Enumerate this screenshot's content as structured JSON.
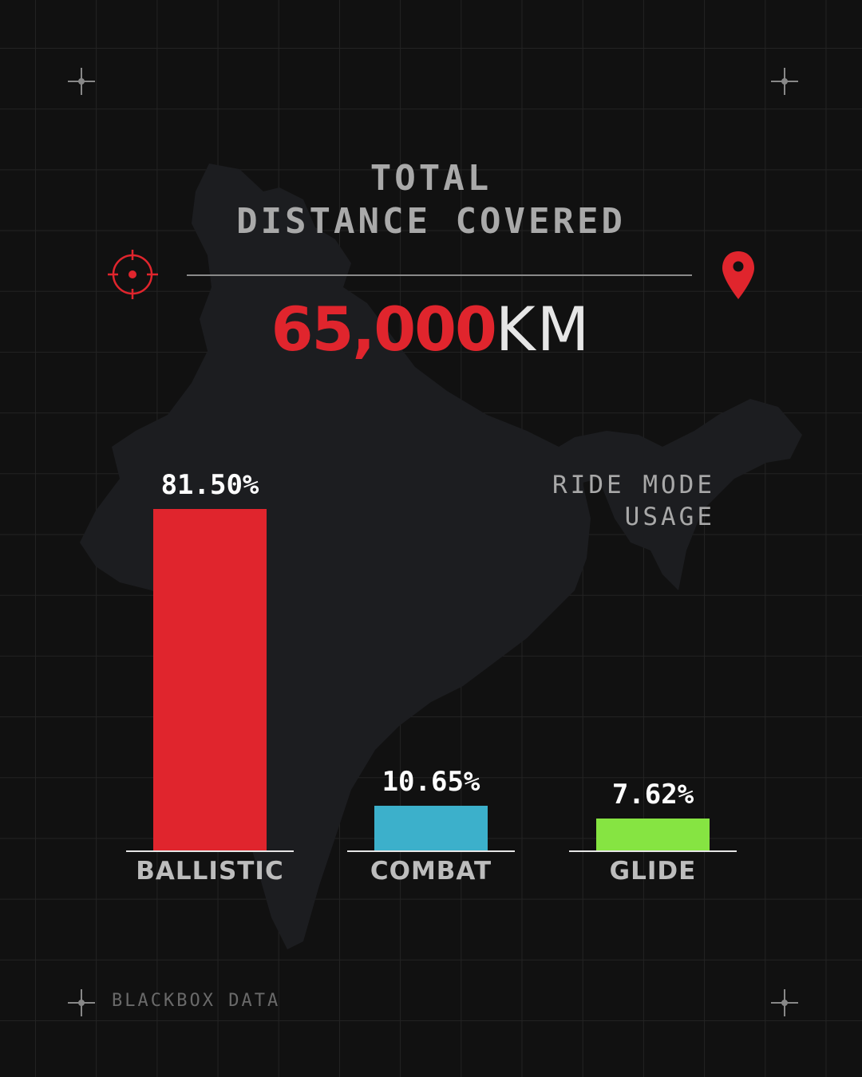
{
  "header": {
    "title_line1": "TOTAL",
    "title_line2": "DISTANCE COVERED"
  },
  "total": {
    "value": "65,000",
    "unit": "KM"
  },
  "icons": {
    "left": "crosshair-icon",
    "right": "map-pin-icon",
    "corners": "sparkle-icon"
  },
  "colors": {
    "accent": "#e0252d",
    "background": "#111111"
  },
  "chart_data": {
    "type": "bar",
    "title": "RIDE MODE USAGE",
    "title_line1": "RIDE MODE",
    "title_line2": "USAGE",
    "categories": [
      "BALLISTIC",
      "COMBAT",
      "GLIDE"
    ],
    "values": [
      81.5,
      10.65,
      7.62
    ],
    "labels": [
      "81.50%",
      "10.65%",
      "7.62%"
    ],
    "colors": [
      "#e0252d",
      "#3cb0cb",
      "#86e442"
    ],
    "unit": "%",
    "grid": false
  },
  "footer": {
    "brand": "BLACKBOX DATA"
  }
}
